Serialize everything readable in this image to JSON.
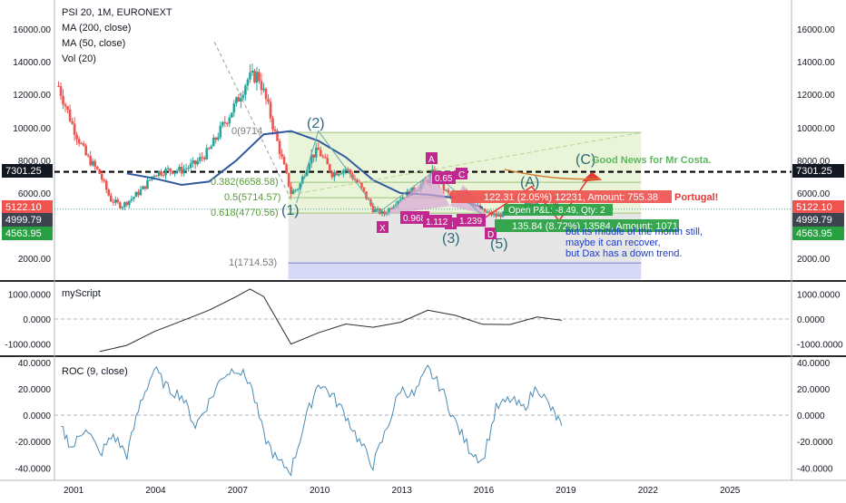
{
  "legend": {
    "symbol": "PSI 20, 1M, EURONEXT",
    "ma200": "MA (200, close)",
    "ma50": "MA (50, close)",
    "vol": "Vol (20)"
  },
  "panes": {
    "osc1_label": "myScript",
    "osc2_label": "ROC (9, close)"
  },
  "colors": {
    "candle_up": "#26a69a",
    "candle_down": "#ef5350",
    "ma_line": "#2f5a9e",
    "price_label_bg": "#ef5350",
    "green_badge": "#26a041",
    "pattern_magenta": "#c0288f",
    "annotation_blue": "#1a3cc6",
    "annotation_green": "#5cb85c",
    "fib_green_fill": "#e9f4d9",
    "fib_gray_fill": "#e6e6e6",
    "fib_purple_fill": "#d7d7f7",
    "oscillator_line": "#4a8ab5",
    "divider": "#2b2b2b"
  },
  "annotations": {
    "good_news": "Good News for Mr Costa.",
    "middle_month": "but its middle of the month still,",
    "can_recover": "maybe it can recover,",
    "dax": "but Dax has a down trend.",
    "portugal": "Portugal!",
    "trade_text": "122.31 (2.05%) 12231, Amount: 755.38",
    "open_pl": "Open P&L: -8.49, Qty: 2",
    "lower_trade": "135.84 (8.72%) 13584, Amount: 1071.68"
  },
  "fib_labels": {
    "f0": "0(9714",
    "f382": "0.382(6658.58)",
    "f5": "0.5(5714.57)",
    "f618": "0.618(4770.56)",
    "f1": "1(1714.53)"
  },
  "wave_labels": {
    "w2": "(2)",
    "w1": "(1)",
    "w3": "(3)",
    "w5": "(5)",
    "wA": "(A)",
    "wC": "(C)"
  },
  "pattern_labels": {
    "A": "A",
    "X": "X",
    "B": "B",
    "C": "C",
    "D": "D",
    "r065": "0.65",
    "r0968": "0.968",
    "r1112": "1.112",
    "r1239": "1.239"
  },
  "price_badges": {
    "dashed_level": "7301.25",
    "red_level": "5122.10",
    "gray_level": "4999.79",
    "green_level": "4563.95"
  },
  "chart_data": [
    {
      "type": "candlestick",
      "title": "PSI 20, 1M, EURONEXT",
      "x_ticks": [
        "2001",
        "2004",
        "2007",
        "2010",
        "2013",
        "2016",
        "2019",
        "2022",
        "2025"
      ],
      "y_ticks": [
        "16000.00",
        "14000.00",
        "12000.00",
        "10000.00",
        "8000.00",
        "6000.00",
        "2000.00"
      ],
      "ylim": [
        1500,
        16500
      ],
      "price_path": [
        [
          2000.5,
          12500
        ],
        [
          2001.0,
          10200
        ],
        [
          2001.5,
          8300
        ],
        [
          2002.0,
          7200
        ],
        [
          2002.4,
          5600
        ],
        [
          2002.8,
          5200
        ],
        [
          2003.2,
          5700
        ],
        [
          2003.6,
          6300
        ],
        [
          2004.0,
          7200
        ],
        [
          2004.5,
          7400
        ],
        [
          2005.0,
          7400
        ],
        [
          2005.5,
          7800
        ],
        [
          2006.0,
          8600
        ],
        [
          2006.5,
          10100
        ],
        [
          2007.0,
          11500
        ],
        [
          2007.4,
          12900
        ],
        [
          2007.8,
          13200
        ],
        [
          2008.2,
          11000
        ],
        [
          2008.6,
          8500
        ],
        [
          2009.0,
          6000
        ],
        [
          2009.3,
          6400
        ],
        [
          2009.7,
          8200
        ],
        [
          2010.0,
          8600
        ],
        [
          2010.5,
          7200
        ],
        [
          2011.0,
          7500
        ],
        [
          2011.5,
          6500
        ],
        [
          2012.0,
          5000
        ],
        [
          2012.4,
          4700
        ],
        [
          2012.9,
          5600
        ],
        [
          2013.5,
          6200
        ],
        [
          2014.0,
          6800
        ],
        [
          2014.2,
          7300
        ],
        [
          2014.6,
          6200
        ],
        [
          2015.0,
          5500
        ],
        [
          2015.3,
          6400
        ],
        [
          2015.7,
          5300
        ],
        [
          2016.0,
          4900
        ],
        [
          2016.5,
          4600
        ],
        [
          2017.0,
          4800
        ],
        [
          2017.5,
          5200
        ],
        [
          2018.0,
          5500
        ],
        [
          2018.4,
          5600
        ],
        [
          2018.8,
          5100
        ]
      ],
      "series": [
        {
          "name": "MA (50, close)",
          "x": [
            2003.0,
            2004.0,
            2005.0,
            2006.0,
            2007.0,
            2008.0,
            2009.0,
            2010.0,
            2011.0,
            2012.0,
            2013.0,
            2014.0,
            2015.0,
            2016.0
          ],
          "values": [
            7200,
            6900,
            6500,
            6700,
            8000,
            9600,
            9800,
            9200,
            8200,
            6800,
            6000,
            5900,
            5700,
            5100
          ]
        }
      ],
      "horizontal_levels": [
        7301.25,
        5122.1,
        4999.79,
        4563.95
      ],
      "fib_levels": [
        {
          "label": "0",
          "price": 9714
        },
        {
          "label": "0.382",
          "price": 6658.58
        },
        {
          "label": "0.5",
          "price": 5714.57
        },
        {
          "label": "0.618",
          "price": 4770.56
        },
        {
          "label": "1",
          "price": 1714.53
        }
      ]
    },
    {
      "type": "line",
      "title": "myScript",
      "y_ticks": [
        "1000.0000",
        "0.0000",
        "-1000.0000"
      ],
      "ylim": [
        -1450,
        1450
      ],
      "x": [
        2002.0,
        2003.0,
        2004.0,
        2005.0,
        2006.0,
        2007.0,
        2007.5,
        2008.0,
        2009.0,
        2010.0,
        2011.0,
        2012.0,
        2013.0,
        2014.0,
        2015.0,
        2016.0,
        2017.0,
        2018.0,
        2018.9
      ],
      "values": [
        -1300,
        -1050,
        -500,
        -80,
        350,
        900,
        1200,
        900,
        -1000,
        -550,
        -200,
        -330,
        -130,
        350,
        150,
        -210,
        -220,
        80,
        -50
      ]
    },
    {
      "type": "line",
      "title": "ROC (9, close)",
      "y_ticks": [
        "40.0000",
        "20.0000",
        "0.0000",
        "-20.0000",
        "-40.0000"
      ],
      "ylim": [
        -48,
        44
      ],
      "x": [
        2000.6,
        2001.0,
        2001.5,
        2002.0,
        2002.5,
        2003.0,
        2003.5,
        2004.0,
        2004.5,
        2005.0,
        2005.5,
        2006.0,
        2006.5,
        2007.0,
        2007.5,
        2008.0,
        2008.5,
        2009.0,
        2009.5,
        2010.0,
        2010.5,
        2011.0,
        2011.5,
        2012.0,
        2012.5,
        2013.0,
        2013.5,
        2014.0,
        2014.5,
        2015.0,
        2015.5,
        2016.0,
        2016.5,
        2017.0,
        2017.5,
        2018.0,
        2018.5,
        2018.9
      ],
      "values": [
        -10,
        -25,
        -8,
        -30,
        -15,
        -30,
        10,
        35,
        20,
        15,
        -8,
        10,
        30,
        36,
        25,
        -15,
        -35,
        -42,
        -5,
        25,
        15,
        0,
        -20,
        -38,
        -10,
        20,
        15,
        35,
        20,
        -5,
        -25,
        -35,
        5,
        12,
        5,
        22,
        5,
        -8
      ]
    }
  ]
}
